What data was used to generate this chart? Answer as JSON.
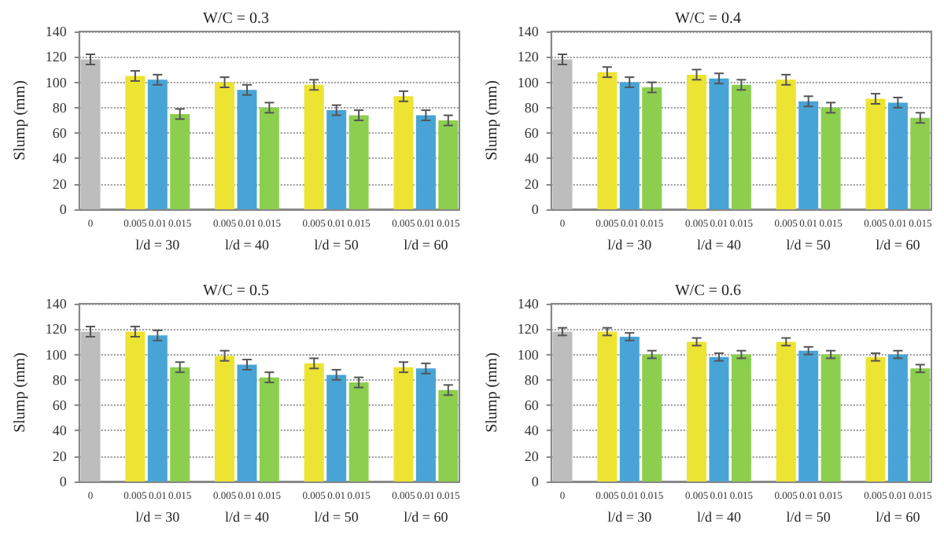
{
  "chart_data": [
    {
      "type": "bar",
      "title": "W/C = 0.3",
      "ylabel": "Slump (mm)",
      "categories": [
        "0",
        null,
        "0.005",
        "0.01",
        "0.015",
        null,
        "0.005",
        "0.01",
        "0.015",
        null,
        "0.005",
        "0.01",
        "0.015",
        null,
        "0.005",
        "0.01",
        "0.015"
      ],
      "values": [
        118,
        null,
        105,
        102,
        75,
        null,
        100,
        94,
        80,
        null,
        98,
        78,
        74,
        null,
        89,
        74,
        70
      ],
      "errors": [
        4,
        null,
        4,
        4,
        4,
        null,
        4,
        4,
        4,
        null,
        4,
        4,
        4,
        null,
        4,
        4,
        4
      ],
      "colors": [
        "#bdbdbd",
        null,
        "#ede332",
        "#48a4d6",
        "#8ccf4f",
        null,
        "#ede332",
        "#48a4d6",
        "#8ccf4f",
        null,
        "#ede332",
        "#48a4d6",
        "#8ccf4f",
        null,
        "#ede332",
        "#48a4d6",
        "#8ccf4f"
      ],
      "ylim": [
        0,
        140
      ],
      "yticks": [
        0,
        20,
        40,
        60,
        80,
        100,
        120,
        140
      ],
      "grid": "y",
      "annotations": [
        "l/d = 30",
        "l/d = 40",
        "l/d = 50",
        "l/d = 60"
      ]
    },
    {
      "type": "bar",
      "title": "W/C = 0.4",
      "ylabel": "Slump (mm)",
      "categories": [
        "0",
        null,
        "0.005",
        "0.01",
        "0.015",
        null,
        "0.005",
        "0.01",
        "0.015",
        null,
        "0.005",
        "0.01",
        "0.015",
        null,
        "0.005",
        "0.01",
        "0.015"
      ],
      "values": [
        118,
        null,
        108,
        100,
        96,
        null,
        106,
        103,
        98,
        null,
        102,
        85,
        80,
        null,
        87,
        84,
        72
      ],
      "errors": [
        4,
        null,
        4,
        4,
        4,
        null,
        4,
        4,
        4,
        null,
        4,
        4,
        4,
        null,
        4,
        4,
        4
      ],
      "colors": [
        "#bdbdbd",
        null,
        "#ede332",
        "#48a4d6",
        "#8ccf4f",
        null,
        "#ede332",
        "#48a4d6",
        "#8ccf4f",
        null,
        "#ede332",
        "#48a4d6",
        "#8ccf4f",
        null,
        "#ede332",
        "#48a4d6",
        "#8ccf4f"
      ],
      "ylim": [
        0,
        140
      ],
      "yticks": [
        0,
        20,
        40,
        60,
        80,
        100,
        120,
        140
      ],
      "grid": "y",
      "annotations": [
        "l/d = 30",
        "l/d = 40",
        "l/d = 50",
        "l/d = 60"
      ]
    },
    {
      "type": "bar",
      "title": "W/C = 0.5",
      "ylabel": "Slump (mm)",
      "categories": [
        "0",
        null,
        "0.005",
        "0.01",
        "0.015",
        null,
        "0.005",
        "0.01",
        "0.015",
        null,
        "0.005",
        "0.01",
        "0.015",
        null,
        "0.005",
        "0.01",
        "0.015"
      ],
      "values": [
        118,
        null,
        118,
        115,
        90,
        null,
        99,
        92,
        82,
        null,
        93,
        84,
        78,
        null,
        90,
        89,
        72
      ],
      "errors": [
        4,
        null,
        4,
        4,
        4,
        null,
        4,
        4,
        4,
        null,
        4,
        4,
        4,
        null,
        4,
        4,
        4
      ],
      "colors": [
        "#bdbdbd",
        null,
        "#ede332",
        "#48a4d6",
        "#8ccf4f",
        null,
        "#ede332",
        "#48a4d6",
        "#8ccf4f",
        null,
        "#ede332",
        "#48a4d6",
        "#8ccf4f",
        null,
        "#ede332",
        "#48a4d6",
        "#8ccf4f"
      ],
      "ylim": [
        0,
        140
      ],
      "yticks": [
        0,
        20,
        40,
        60,
        80,
        100,
        120,
        140
      ],
      "grid": "y",
      "annotations": [
        "l/d = 30",
        "l/d = 40",
        "l/d = 50",
        "l/d = 60"
      ]
    },
    {
      "type": "bar",
      "title": "W/C = 0.6",
      "ylabel": "Slump (mm)",
      "categories": [
        "0",
        null,
        "0.005",
        "0.01",
        "0.015",
        null,
        "0.005",
        "0.01",
        "0.015",
        null,
        "0.005",
        "0.01",
        "0.015",
        null,
        "0.005",
        "0.01",
        "0.015"
      ],
      "values": [
        118,
        null,
        118,
        114,
        100,
        null,
        110,
        98,
        100,
        null,
        110,
        103,
        100,
        null,
        98,
        100,
        89
      ],
      "errors": [
        3,
        null,
        3,
        3,
        3,
        null,
        3,
        3,
        3,
        null,
        3,
        3,
        3,
        null,
        3,
        3,
        3
      ],
      "colors": [
        "#bdbdbd",
        null,
        "#ede332",
        "#48a4d6",
        "#8ccf4f",
        null,
        "#ede332",
        "#48a4d6",
        "#8ccf4f",
        null,
        "#ede332",
        "#48a4d6",
        "#8ccf4f",
        null,
        "#ede332",
        "#48a4d6",
        "#8ccf4f"
      ],
      "ylim": [
        0,
        140
      ],
      "yticks": [
        0,
        20,
        40,
        60,
        80,
        100,
        120,
        140
      ],
      "grid": "y",
      "annotations": [
        "l/d = 30",
        "l/d = 40",
        "l/d = 50",
        "l/d = 60"
      ]
    }
  ]
}
